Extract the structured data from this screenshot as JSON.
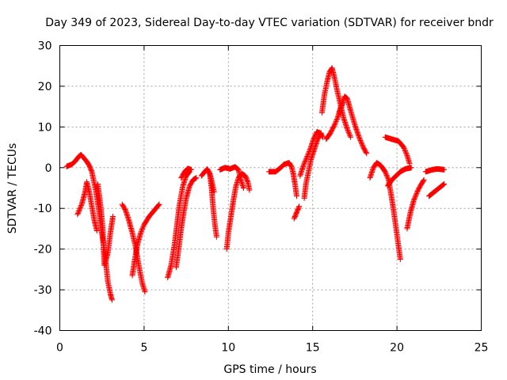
{
  "chart_data": {
    "type": "scatter",
    "title": "Day 349 of 2023, Sidereal Day-to-day VTEC variation (SDTVAR) for receiver bndr",
    "xlabel": "GPS time / hours",
    "ylabel": "SDTVAR / TECUs",
    "xlim": [
      0,
      25
    ],
    "ylim": [
      -40,
      30
    ],
    "xticks": [
      0,
      5,
      10,
      15,
      20,
      25
    ],
    "xtick_labels": [
      "0",
      "5",
      "10",
      "15",
      "20",
      "25"
    ],
    "yticks": [
      -40,
      -30,
      -20,
      -10,
      0,
      10,
      20,
      30
    ],
    "ytick_labels": [
      "-40",
      "-30",
      "-20",
      "-10",
      "0",
      "10",
      "20",
      "30"
    ],
    "grid": true,
    "marker": "+",
    "color": "#ff0000",
    "segments": [
      [
        [
          0.4,
          0.3
        ],
        [
          0.7,
          0.8
        ],
        [
          0.9,
          1.5
        ],
        [
          1.1,
          2.6
        ],
        [
          1.25,
          3.2
        ],
        [
          1.4,
          2.5
        ],
        [
          1.6,
          1.5
        ],
        [
          1.75,
          0.5
        ],
        [
          1.9,
          -1.0
        ],
        [
          2.0,
          -3.0
        ],
        [
          2.15,
          -6.0
        ],
        [
          2.3,
          -10.0
        ],
        [
          2.45,
          -15.0
        ],
        [
          2.6,
          -19.0
        ],
        [
          2.7,
          -22.0
        ],
        [
          2.85,
          -28.0
        ],
        [
          3.0,
          -31.0
        ],
        [
          3.1,
          -32.5
        ]
      ],
      [
        [
          1.05,
          -11.5
        ],
        [
          1.3,
          -9.0
        ],
        [
          1.5,
          -6.0
        ],
        [
          1.6,
          -3.5
        ],
        [
          1.75,
          -6.0
        ],
        [
          1.9,
          -9.5
        ],
        [
          2.05,
          -13.0
        ],
        [
          2.2,
          -15.5
        ]
      ],
      [
        [
          2.25,
          -4.0
        ],
        [
          2.35,
          -7.0
        ],
        [
          2.45,
          -10.5
        ],
        [
          2.55,
          -15.0
        ],
        [
          2.6,
          -20.5
        ],
        [
          2.65,
          -24.0
        ],
        [
          2.85,
          -21.0
        ],
        [
          3.0,
          -16.0
        ],
        [
          3.15,
          -12.0
        ]
      ],
      [
        [
          3.7,
          -9.0
        ],
        [
          3.9,
          -10.5
        ],
        [
          4.1,
          -13.0
        ],
        [
          4.3,
          -16.0
        ],
        [
          4.5,
          -19.5
        ],
        [
          4.6,
          -22.0
        ],
        [
          4.75,
          -25.5
        ],
        [
          4.9,
          -28.5
        ],
        [
          5.05,
          -30.5
        ]
      ],
      [
        [
          4.3,
          -26.5
        ],
        [
          4.45,
          -22.5
        ],
        [
          4.6,
          -19.0
        ],
        [
          4.8,
          -16.0
        ],
        [
          5.0,
          -14.0
        ],
        [
          5.3,
          -12.0
        ],
        [
          5.6,
          -10.5
        ],
        [
          5.9,
          -9.0
        ]
      ],
      [
        [
          6.4,
          -27.0
        ],
        [
          6.6,
          -24.0
        ],
        [
          6.8,
          -19.0
        ],
        [
          6.95,
          -14.0
        ],
        [
          7.1,
          -9.0
        ],
        [
          7.3,
          -4.5
        ],
        [
          7.5,
          -2.0
        ],
        [
          7.7,
          -1.0
        ]
      ],
      [
        [
          6.9,
          -24.5
        ],
        [
          7.05,
          -20.0
        ],
        [
          7.2,
          -15.0
        ],
        [
          7.35,
          -11.0
        ],
        [
          7.5,
          -7.5
        ],
        [
          7.7,
          -4.5
        ],
        [
          7.9,
          -3.0
        ],
        [
          8.1,
          -2.5
        ]
      ],
      [
        [
          7.2,
          -2.5
        ],
        [
          7.4,
          -1.0
        ],
        [
          7.6,
          -0.2
        ],
        [
          7.8,
          -0.5
        ]
      ],
      [
        [
          8.4,
          -2.0
        ],
        [
          8.6,
          -1.0
        ],
        [
          8.75,
          -0.3
        ],
        [
          8.9,
          -1.5
        ],
        [
          9.0,
          -5.0
        ],
        [
          9.1,
          -10.0
        ],
        [
          9.2,
          -14.0
        ],
        [
          9.3,
          -17.0
        ]
      ],
      [
        [
          8.85,
          -1.0
        ],
        [
          9.0,
          -3.0
        ],
        [
          9.15,
          -6.0
        ]
      ],
      [
        [
          9.5,
          -0.5
        ],
        [
          9.8,
          0.0
        ],
        [
          10.1,
          -0.3
        ],
        [
          10.4,
          0.2
        ],
        [
          10.6,
          -0.5
        ],
        [
          10.7,
          -2.5
        ],
        [
          10.9,
          -5.0
        ]
      ],
      [
        [
          9.9,
          -20.0
        ],
        [
          10.0,
          -16.0
        ],
        [
          10.15,
          -12.0
        ],
        [
          10.3,
          -8.0
        ],
        [
          10.45,
          -4.5
        ],
        [
          10.6,
          -2.5
        ],
        [
          10.8,
          -1.5
        ],
        [
          11.0,
          -2.0
        ],
        [
          11.15,
          -3.5
        ],
        [
          11.25,
          -5.5
        ]
      ],
      [
        [
          12.4,
          -1.0
        ],
        [
          12.8,
          -1.0
        ],
        [
          13.1,
          0.0
        ],
        [
          13.3,
          0.8
        ],
        [
          13.6,
          1.2
        ],
        [
          13.75,
          0.2
        ],
        [
          13.85,
          -1.5
        ],
        [
          13.95,
          -4.0
        ],
        [
          14.05,
          -7.0
        ]
      ],
      [
        [
          13.9,
          -12.5
        ],
        [
          14.05,
          -11.0
        ],
        [
          14.2,
          -9.5
        ]
      ],
      [
        [
          14.25,
          -2.0
        ],
        [
          14.45,
          0.5
        ],
        [
          14.65,
          2.5
        ],
        [
          14.85,
          4.5
        ],
        [
          15.05,
          7.0
        ],
        [
          15.25,
          8.8
        ],
        [
          15.45,
          8.5
        ],
        [
          15.6,
          7.5
        ]
      ],
      [
        [
          14.5,
          -7.5
        ],
        [
          14.6,
          -4.0
        ],
        [
          14.75,
          -1.0
        ],
        [
          14.9,
          2.0
        ],
        [
          15.1,
          4.5
        ],
        [
          15.3,
          7.0
        ],
        [
          15.5,
          8.5
        ]
      ],
      [
        [
          15.55,
          13.5
        ],
        [
          15.7,
          18.0
        ],
        [
          15.85,
          21.0
        ],
        [
          16.0,
          23.5
        ],
        [
          16.15,
          24.5
        ],
        [
          16.3,
          22.0
        ],
        [
          16.45,
          19.0
        ],
        [
          16.65,
          15.5
        ],
        [
          16.85,
          12.0
        ],
        [
          17.05,
          9.5
        ],
        [
          17.25,
          7.5
        ]
      ],
      [
        [
          15.8,
          7.0
        ],
        [
          16.05,
          8.5
        ],
        [
          16.3,
          10.5
        ],
        [
          16.5,
          12.5
        ],
        [
          16.7,
          15.5
        ],
        [
          16.9,
          17.5
        ],
        [
          17.05,
          17.0
        ],
        [
          17.25,
          14.0
        ],
        [
          17.5,
          10.5
        ],
        [
          17.75,
          7.5
        ],
        [
          18.0,
          5.0
        ],
        [
          18.2,
          3.5
        ]
      ],
      [
        [
          16.6,
          13.5
        ],
        [
          16.8,
          16.0
        ]
      ],
      [
        [
          18.4,
          -2.5
        ],
        [
          18.6,
          0.0
        ],
        [
          18.8,
          1.2
        ],
        [
          19.05,
          0.5
        ],
        [
          19.3,
          -1.0
        ],
        [
          19.5,
          -3.0
        ],
        [
          19.65,
          -6.5
        ],
        [
          19.8,
          -10.5
        ],
        [
          19.95,
          -15.0
        ],
        [
          20.1,
          -19.5
        ],
        [
          20.2,
          -22.5
        ]
      ],
      [
        [
          19.3,
          7.5
        ],
        [
          19.7,
          7.0
        ],
        [
          20.1,
          6.5
        ],
        [
          20.4,
          5.0
        ],
        [
          20.6,
          3.0
        ],
        [
          20.75,
          1.0
        ]
      ],
      [
        [
          19.45,
          -4.5
        ],
        [
          19.7,
          -3.0
        ],
        [
          19.95,
          -2.0
        ],
        [
          20.2,
          -1.0
        ],
        [
          20.5,
          -0.3
        ],
        [
          20.85,
          0.0
        ]
      ],
      [
        [
          20.6,
          -15.0
        ],
        [
          20.8,
          -11.0
        ],
        [
          21.0,
          -8.0
        ],
        [
          21.25,
          -5.5
        ],
        [
          21.45,
          -4.0
        ],
        [
          21.6,
          -3.0
        ]
      ],
      [
        [
          21.7,
          -1.0
        ],
        [
          22.1,
          -0.5
        ],
        [
          22.4,
          -0.3
        ],
        [
          22.8,
          -0.5
        ]
      ],
      [
        [
          21.9,
          -7.0
        ],
        [
          22.2,
          -6.0
        ],
        [
          22.5,
          -5.0
        ],
        [
          22.8,
          -4.0
        ]
      ]
    ]
  }
}
